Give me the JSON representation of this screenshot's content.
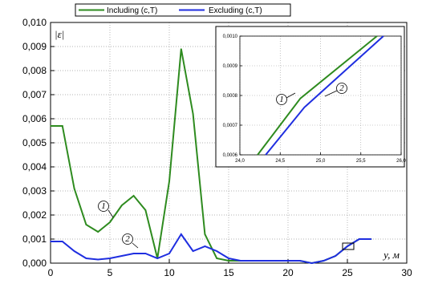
{
  "chart_data": [
    {
      "type": "line",
      "xlabel": "y, м",
      "ylabel": "|ε|",
      "xlim": [
        0,
        30
      ],
      "ylim": [
        0,
        0.01
      ],
      "x_ticks": [
        "0",
        "5",
        "10",
        "15",
        "20",
        "25",
        "30"
      ],
      "y_ticks": [
        "0,000",
        "0,001",
        "0,002",
        "0,003",
        "0,004",
        "0,005",
        "0,006",
        "0,007",
        "0,008",
        "0,009",
        "0,010"
      ],
      "grid": true,
      "legend": "top",
      "series": [
        {
          "name": "Including (c,T)",
          "color": "#2e8b1f",
          "marker": "1",
          "x": [
            0,
            1,
            2,
            3,
            4,
            5,
            6,
            7,
            8,
            9,
            10,
            11,
            12,
            13,
            14,
            15,
            16,
            17,
            18,
            19,
            20,
            21,
            22,
            23,
            24,
            25,
            26,
            27
          ],
          "y": [
            0.0057,
            0.0057,
            0.0031,
            0.0016,
            0.0013,
            0.0017,
            0.0024,
            0.0028,
            0.0022,
            0.0002,
            0.0034,
            0.0089,
            0.0062,
            0.0012,
            0.0002,
            0.0001,
            0.0001,
            0.0001,
            0.0001,
            0.0001,
            0.0001,
            0.0001,
            0.0,
            0.0001,
            0.0003,
            0.0007,
            0.001,
            0.001
          ]
        },
        {
          "name": "Excluding (c,T)",
          "color": "#1f2ee0",
          "marker": "2",
          "x": [
            0,
            1,
            2,
            3,
            4,
            5,
            6,
            7,
            8,
            9,
            10,
            11,
            12,
            13,
            14,
            15,
            16,
            17,
            18,
            19,
            20,
            21,
            22,
            23,
            24,
            25,
            26,
            27
          ],
          "y": [
            0.0009,
            0.0009,
            0.0005,
            0.0002,
            0.00015,
            0.0002,
            0.0003,
            0.0004,
            0.0004,
            0.0002,
            0.0004,
            0.0012,
            0.0005,
            0.0007,
            0.0005,
            0.0002,
            0.0001,
            0.0001,
            0.0001,
            0.0001,
            0.0001,
            0.0001,
            0.0,
            0.0001,
            0.0003,
            0.0007,
            0.001,
            0.001
          ]
        }
      ]
    },
    {
      "type": "line",
      "inset": true,
      "xlim": [
        24,
        26
      ],
      "ylim": [
        0.0006,
        0.001
      ],
      "x_ticks": [
        "24,0",
        "24,5",
        "25,0",
        "25,5",
        "26,0"
      ],
      "y_ticks": [
        "0,0006",
        "0,0007",
        "0,0008",
        "0,0009",
        "0,0010"
      ],
      "grid": true,
      "series": [
        {
          "name": "Including (c,T)",
          "color": "#2e8b1f",
          "marker": "1",
          "x": [
            24.22,
            24.75,
            25.7
          ],
          "y": [
            0.0006,
            0.00079,
            0.001
          ]
        },
        {
          "name": "Excluding (c,T)",
          "color": "#1f2ee0",
          "marker": "2",
          "x": [
            24.32,
            24.8,
            25.78
          ],
          "y": [
            0.0006,
            0.00076,
            0.001
          ]
        }
      ]
    }
  ]
}
